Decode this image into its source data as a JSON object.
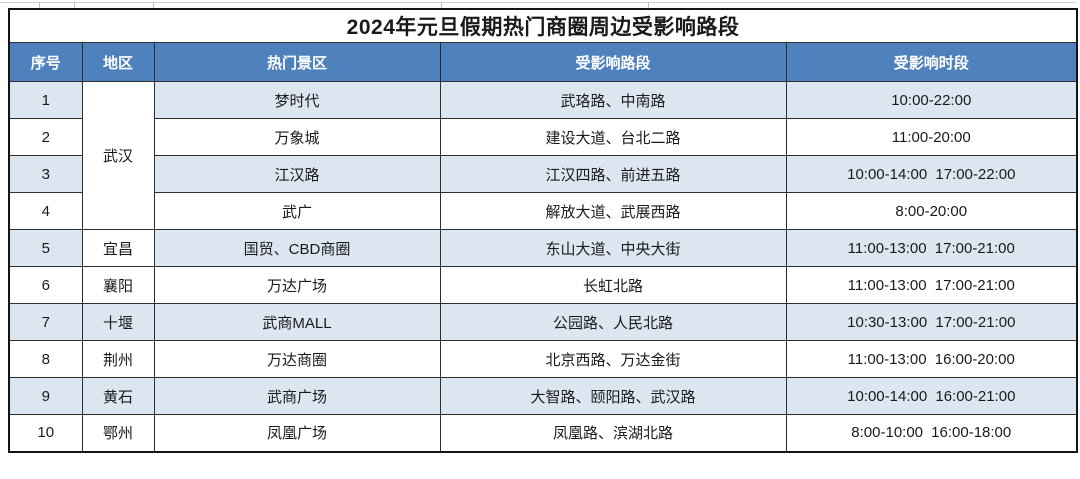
{
  "colors": {
    "header_bg": "#4f81bd",
    "header_text": "#ffffff",
    "stripe_bg": "#dce6f1",
    "border_outer": "#141414",
    "border_inner": "#2e2e2e",
    "text": "#1a1a1a"
  },
  "chart_data": {
    "type": "table",
    "title": "2024年元旦假期热门商圈周边受影响路段",
    "columns": [
      "序号",
      "地区",
      "热门景区",
      "受影响路段",
      "受影响时段"
    ],
    "rows": [
      {
        "no": "1",
        "region": "武汉",
        "region_rowspan": 4,
        "spot": "梦时代",
        "roads": "武珞路、中南路",
        "time": "10:00-22:00"
      },
      {
        "no": "2",
        "spot": "万象城",
        "roads": "建设大道、台北二路",
        "time": "11:00-20:00"
      },
      {
        "no": "3",
        "spot": "江汉路",
        "roads": "江汉四路、前进五路",
        "time": "10:00-14:00 17:00-22:00"
      },
      {
        "no": "4",
        "spot": "武广",
        "roads": "解放大道、武展西路",
        "time": "8:00-20:00"
      },
      {
        "no": "5",
        "region": "宜昌",
        "spot": "国贸、CBD商圈",
        "roads": "东山大道、中央大街",
        "time": "11:00-13:00 17:00-21:00"
      },
      {
        "no": "6",
        "region": "襄阳",
        "spot": "万达广场",
        "roads": "长虹北路",
        "time": "11:00-13:00 17:00-21:00"
      },
      {
        "no": "7",
        "region": "十堰",
        "spot": "武商MALL",
        "roads": "公园路、人民北路",
        "time": "10:30-13:00 17:00-21:00"
      },
      {
        "no": "8",
        "region": "荆州",
        "spot": "万达商圈",
        "roads": "北京西路、万达金街",
        "time": "11:00-13:00 16:00-20:00"
      },
      {
        "no": "9",
        "region": "黄石",
        "spot": "武商广场",
        "roads": "大智路、颐阳路、武汉路",
        "time": "10:00-14:00 16:00-21:00"
      },
      {
        "no": "10",
        "region": "鄂州",
        "spot": "凤凰广场",
        "roads": "凤凰路、滨湖北路",
        "time": "8:00-10:00 16:00-18:00"
      }
    ]
  }
}
